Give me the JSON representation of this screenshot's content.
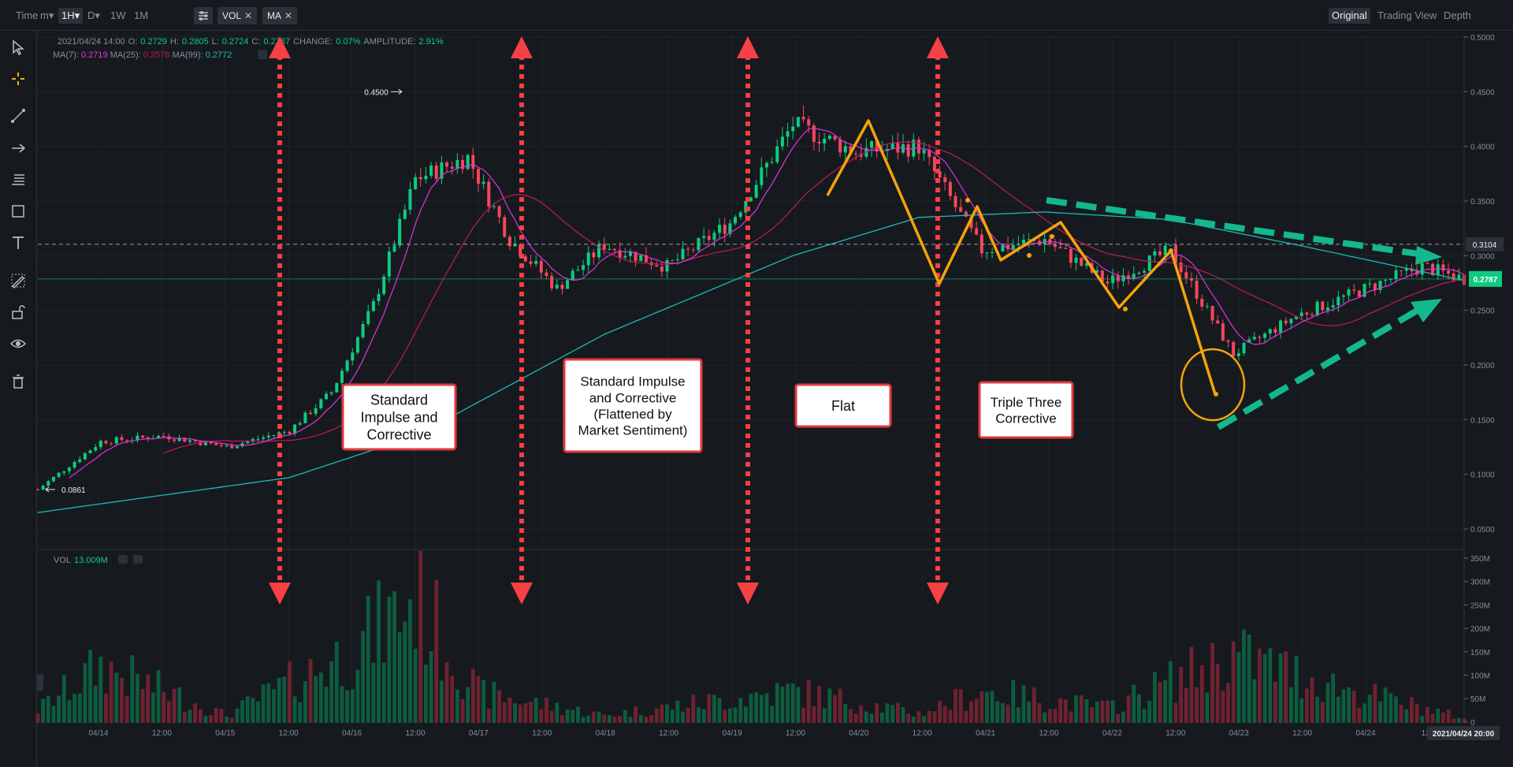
{
  "toolbar": {
    "time_label": "Time",
    "minute_label": "m▾",
    "hour_label": "1H▾",
    "day_label": "D▾",
    "week_label": "1W",
    "month_label": "1M",
    "vol_chip": "VOL",
    "ma_chip": "MA",
    "close_glyph": "✕",
    "view_original": "Original",
    "view_tradingview": "Trading View",
    "view_depth": "Depth"
  },
  "sidebar_tools": [
    "cursor-icon",
    "crosshair-icon",
    "trendline-icon",
    "arrow-icon",
    "fib-icon",
    "rectangle-icon",
    "text-icon",
    "pencil-ruler-icon",
    "lock-icon",
    "eye-icon",
    "trash-icon"
  ],
  "ohlc_info": {
    "date": "2021/04/24 14:00",
    "o_label": "O:",
    "o_value": "0.2729",
    "h_label": "H:",
    "h_value": "0.2805",
    "l_label": "L:",
    "l_value": "0.2724",
    "c_label": "C:",
    "c_value": "0.2787",
    "change_label": "CHANGE:",
    "change_value": "0.07%",
    "amp_label": "AMPLITUDE:",
    "amp_value": "2.91%"
  },
  "ma_info": {
    "ma7_label": "MA(7):",
    "ma7_value": "0.2719",
    "ma25_label": "MA(25):",
    "ma25_value": "0.2578",
    "ma99_label": "MA(99):",
    "ma99_value": "0.2772"
  },
  "vol_info": {
    "label": "VOL",
    "value": "13.009M"
  },
  "price_axis": {
    "ticks": [
      "0.5000",
      "0.4500",
      "0.4000",
      "0.3500",
      "0.3000",
      "0.2500",
      "0.2000",
      "0.1500",
      "0.1000",
      "0.0500"
    ],
    "crosshair_label": "0.3104",
    "last_price_label": "0.2787"
  },
  "volume_axis": {
    "ticks": [
      "350M",
      "300M",
      "250M",
      "200M",
      "150M",
      "100M",
      "50M",
      "0"
    ]
  },
  "time_axis": {
    "ticks": [
      "04/14",
      "12:00",
      "04/15",
      "12:00",
      "04/16",
      "12:00",
      "04/17",
      "12:00",
      "04/18",
      "12:00",
      "04/19",
      "12:00",
      "04/20",
      "12:00",
      "04/21",
      "12:00",
      "04/22",
      "12:00",
      "04/23",
      "12:00",
      "04/24",
      "12:0"
    ],
    "crosshair_label": "2021/04/24 20:00"
  },
  "markers": {
    "high": "0.4500",
    "low": "0.0861"
  },
  "annotations": [
    "Standard\nImpulse and\nCorrective",
    "Standard Impulse\nand Corrective\n(Flattened by\nMarket Sentiment)",
    "Flat",
    "Triple Three\nCorrective"
  ],
  "colors": {
    "background": "#161a1e",
    "up": "#0ecb81",
    "down": "#f6465d",
    "ma7": "#e033e0",
    "ma25": "#c2185b",
    "ma99": "#1fb8b8",
    "annotation_red": "#f54045",
    "annotation_orange": "#f5a30b",
    "annotation_teal": "#13b88e"
  },
  "chart_data": {
    "type": "candlestick",
    "symbol_interval": "1H",
    "ylim": [
      0.05,
      0.5
    ],
    "volume_ylim": [
      0,
      350
    ],
    "volume_unit": "M",
    "grid": true,
    "series": [
      {
        "name": "MA(7)",
        "value": 0.2719
      },
      {
        "name": "MA(25)",
        "value": 0.2578
      },
      {
        "name": "MA(99)",
        "value": 0.2772
      }
    ],
    "price_path": [
      [
        "2021-04-13 12:00",
        0.086
      ],
      [
        "2021-04-14 00:00",
        0.13
      ],
      [
        "2021-04-14 12:00",
        0.135
      ],
      [
        "2021-04-15 00:00",
        0.125
      ],
      [
        "2021-04-15 12:00",
        0.14
      ],
      [
        "2021-04-15 20:00",
        0.175
      ],
      [
        "2021-04-16 04:00",
        0.255
      ],
      [
        "2021-04-16 12:00",
        0.37
      ],
      [
        "2021-04-16 22:00",
        0.39
      ],
      [
        "2021-04-17 06:00",
        0.315
      ],
      [
        "2021-04-17 15:00",
        0.27
      ],
      [
        "2021-04-18 00:00",
        0.31
      ],
      [
        "2021-04-18 12:00",
        0.29
      ],
      [
        "2021-04-19 00:00",
        0.33
      ],
      [
        "2021-04-19 12:00",
        0.42
      ],
      [
        "2021-04-20 00:00",
        0.395
      ],
      [
        "2021-04-20 12:00",
        0.4
      ],
      [
        "2021-04-21 00:00",
        0.305
      ],
      [
        "2021-04-21 12:00",
        0.315
      ],
      [
        "2021-04-22 00:00",
        0.275
      ],
      [
        "2021-04-22 12:00",
        0.305
      ],
      [
        "2021-04-23 00:00",
        0.21
      ],
      [
        "2021-04-23 12:00",
        0.245
      ],
      [
        "2021-04-24 12:00",
        0.29
      ],
      [
        "2021-04-24 20:00",
        0.2787
      ]
    ],
    "ma99_path": [
      [
        "2021-04-13 12:00",
        0.065
      ],
      [
        "2021-04-15 12:00",
        0.097
      ],
      [
        "2021-04-16 12:00",
        0.135
      ],
      [
        "2021-04-18 00:00",
        0.228
      ],
      [
        "2021-04-19 12:00",
        0.3
      ],
      [
        "2021-04-20 12:00",
        0.335
      ],
      [
        "2021-04-21 12:00",
        0.34
      ],
      [
        "2021-04-22 12:00",
        0.333
      ],
      [
        "2021-04-23 12:00",
        0.31
      ],
      [
        "2021-04-24 20:00",
        0.2772
      ]
    ],
    "volume_bars": [
      [
        "2021-04-13 12:00",
        35
      ],
      [
        "2021-04-14 00:00",
        150
      ],
      [
        "2021-04-15 00:00",
        20
      ],
      [
        "2021-04-16 00:00",
        190
      ],
      [
        "2021-04-16 12:00",
        330
      ],
      [
        "2021-04-17 00:00",
        80
      ],
      [
        "2021-04-18 00:00",
        20
      ],
      [
        "2021-04-19 12:00",
        85
      ],
      [
        "2021-04-20 12:00",
        25
      ],
      [
        "2021-04-21 00:00",
        85
      ],
      [
        "2021-04-22 00:00",
        40
      ],
      [
        "2021-04-23 00:00",
        180
      ],
      [
        "2021-04-24 00:00",
        80
      ],
      [
        "2021-04-24 20:00",
        13.009
      ]
    ]
  }
}
